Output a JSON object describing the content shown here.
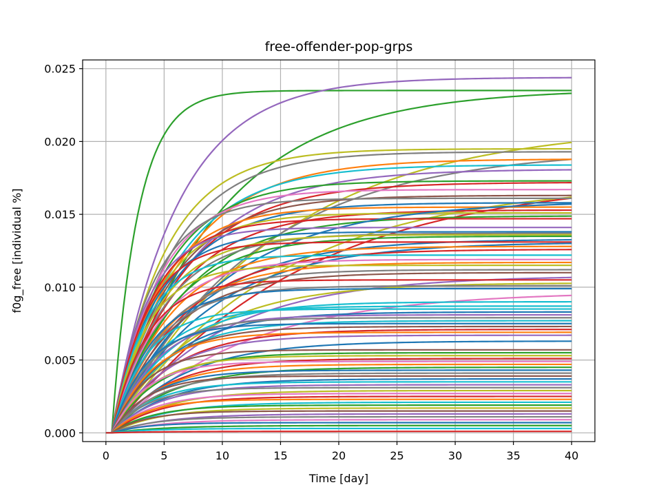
{
  "chart_data": {
    "type": "line",
    "title": "free-offender-pop-grps",
    "xlabel": "Time [day]",
    "ylabel": "f0g_free [individual %]",
    "xlim": [
      -2,
      42
    ],
    "ylim": [
      -0.0006,
      0.0256
    ],
    "xticks": [
      0,
      5,
      10,
      15,
      20,
      25,
      30,
      35,
      40
    ],
    "yticks": [
      0.0,
      0.005,
      0.01,
      0.015,
      0.02,
      0.025
    ],
    "ytick_labels": [
      "0.000",
      "0.005",
      "0.010",
      "0.015",
      "0.020",
      "0.025"
    ],
    "grid": true,
    "model": "saturating growth curves starting at day 0.5: y = final * (1 - exp(-(t - 0.5)/tau))",
    "palette": [
      "#1f77b4",
      "#ff7f0e",
      "#2ca02c",
      "#d62728",
      "#9467bd",
      "#8c564b",
      "#e377c2",
      "#7f7f7f",
      "#bcbd22",
      "#17becf"
    ],
    "series": [
      {
        "final": 0.0235,
        "tau": 2.2,
        "color": "#2ca02c"
      },
      {
        "final": 0.0244,
        "tau": 5.5,
        "color": "#9467bd"
      },
      {
        "final": 0.0236,
        "tau": 9.0,
        "color": "#2ca02c"
      },
      {
        "final": 0.0212,
        "tau": 14.0,
        "color": "#bcbd22"
      },
      {
        "final": 0.0195,
        "tau": 4.5,
        "color": "#bcbd22"
      },
      {
        "final": 0.0193,
        "tau": 5.0,
        "color": "#7f7f7f"
      },
      {
        "final": 0.0195,
        "tau": 12.0,
        "color": "#7f7f7f"
      },
      {
        "final": 0.0188,
        "tau": 6.0,
        "color": "#ff7f0e"
      },
      {
        "final": 0.0184,
        "tau": 5.5,
        "color": "#17becf"
      },
      {
        "final": 0.0181,
        "tau": 6.5,
        "color": "#9467bd"
      },
      {
        "final": 0.0173,
        "tau": 4.5,
        "color": "#2ca02c"
      },
      {
        "final": 0.0172,
        "tau": 6.0,
        "color": "#d62728"
      },
      {
        "final": 0.0172,
        "tau": 14.0,
        "color": "#bcbd22"
      },
      {
        "final": 0.0176,
        "tau": 16.0,
        "color": "#d62728"
      },
      {
        "final": 0.0167,
        "tau": 4.0,
        "color": "#e377c2"
      },
      {
        "final": 0.0163,
        "tau": 5.0,
        "color": "#8c564b"
      },
      {
        "final": 0.0161,
        "tau": 3.5,
        "color": "#7f7f7f"
      },
      {
        "final": 0.0158,
        "tau": 5.0,
        "color": "#1f77b4"
      },
      {
        "final": 0.0155,
        "tau": 4.0,
        "color": "#ff7f0e"
      },
      {
        "final": 0.0153,
        "tau": 5.5,
        "color": "#d62728"
      },
      {
        "final": 0.0151,
        "tau": 4.0,
        "color": "#bcbd22"
      },
      {
        "final": 0.0149,
        "tau": 6.0,
        "color": "#2ca02c"
      },
      {
        "final": 0.0147,
        "tau": 3.5,
        "color": "#d62728"
      },
      {
        "final": 0.0159,
        "tau": 9.0,
        "color": "#1f77b4"
      },
      {
        "final": 0.0141,
        "tau": 3.0,
        "color": "#9467bd"
      },
      {
        "final": 0.0138,
        "tau": 3.5,
        "color": "#1f77b4"
      },
      {
        "final": 0.0137,
        "tau": 4.5,
        "color": "#7f7f7f"
      },
      {
        "final": 0.0136,
        "tau": 4.0,
        "color": "#bcbd22"
      },
      {
        "final": 0.0135,
        "tau": 5.0,
        "color": "#2ca02c"
      },
      {
        "final": 0.0133,
        "tau": 7.0,
        "color": "#1f77b4"
      },
      {
        "final": 0.0131,
        "tau": 3.0,
        "color": "#d62728"
      },
      {
        "final": 0.0131,
        "tau": 8.0,
        "color": "#1f77b4"
      },
      {
        "final": 0.0128,
        "tau": 5.0,
        "color": "#ff7f0e"
      },
      {
        "final": 0.0126,
        "tau": 6.0,
        "color": "#d62728"
      },
      {
        "final": 0.0122,
        "tau": 3.0,
        "color": "#17becf"
      },
      {
        "final": 0.0119,
        "tau": 4.0,
        "color": "#e377c2"
      },
      {
        "final": 0.0117,
        "tau": 5.0,
        "color": "#ff7f0e"
      },
      {
        "final": 0.0115,
        "tau": 3.0,
        "color": "#bcbd22"
      },
      {
        "final": 0.0112,
        "tau": 4.5,
        "color": "#7f7f7f"
      },
      {
        "final": 0.011,
        "tau": 5.0,
        "color": "#8c564b"
      },
      {
        "final": 0.0108,
        "tau": 9.0,
        "color": "#9467bd"
      },
      {
        "final": 0.0105,
        "tau": 3.0,
        "color": "#d62728"
      },
      {
        "final": 0.0103,
        "tau": 7.0,
        "color": "#bcbd22"
      },
      {
        "final": 0.0101,
        "tau": 4.0,
        "color": "#7f7f7f"
      },
      {
        "final": 0.0099,
        "tau": 3.5,
        "color": "#1f77b4"
      },
      {
        "final": 0.0097,
        "tau": 11.0,
        "color": "#e377c2"
      },
      {
        "final": 0.009,
        "tau": 5.0,
        "color": "#17becf"
      },
      {
        "final": 0.0087,
        "tau": 4.0,
        "color": "#17becf"
      },
      {
        "final": 0.0085,
        "tau": 3.0,
        "color": "#17becf"
      },
      {
        "final": 0.0083,
        "tau": 5.0,
        "color": "#1f77b4"
      },
      {
        "final": 0.0081,
        "tau": 4.0,
        "color": "#9467bd"
      },
      {
        "final": 0.0079,
        "tau": 3.5,
        "color": "#7f7f7f"
      },
      {
        "final": 0.0077,
        "tau": 4.5,
        "color": "#17becf"
      },
      {
        "final": 0.0075,
        "tau": 3.0,
        "color": "#1f77b4"
      },
      {
        "final": 0.0073,
        "tau": 4.0,
        "color": "#8c564b"
      },
      {
        "final": 0.0071,
        "tau": 5.0,
        "color": "#d62728"
      },
      {
        "final": 0.0069,
        "tau": 3.5,
        "color": "#ff7f0e"
      },
      {
        "final": 0.0067,
        "tau": 4.5,
        "color": "#9467bd"
      },
      {
        "final": 0.0063,
        "tau": 6.0,
        "color": "#1f77b4"
      },
      {
        "final": 0.0057,
        "tau": 3.0,
        "color": "#8c564b"
      },
      {
        "final": 0.0055,
        "tau": 4.0,
        "color": "#2ca02c"
      },
      {
        "final": 0.0053,
        "tau": 3.5,
        "color": "#bcbd22"
      },
      {
        "final": 0.0051,
        "tau": 4.5,
        "color": "#d62728"
      },
      {
        "final": 0.0049,
        "tau": 3.0,
        "color": "#e377c2"
      },
      {
        "final": 0.0047,
        "tau": 4.0,
        "color": "#ff7f0e"
      },
      {
        "final": 0.0045,
        "tau": 5.0,
        "color": "#2ca02c"
      },
      {
        "final": 0.0043,
        "tau": 3.5,
        "color": "#1f77b4"
      },
      {
        "final": 0.0041,
        "tau": 4.0,
        "color": "#7f7f7f"
      },
      {
        "final": 0.0039,
        "tau": 3.0,
        "color": "#8c564b"
      },
      {
        "final": 0.0037,
        "tau": 4.5,
        "color": "#1f77b4"
      },
      {
        "final": 0.0035,
        "tau": 3.5,
        "color": "#17becf"
      },
      {
        "final": 0.0033,
        "tau": 4.0,
        "color": "#9467bd"
      },
      {
        "final": 0.0031,
        "tau": 3.0,
        "color": "#7f7f7f"
      },
      {
        "final": 0.0029,
        "tau": 4.5,
        "color": "#bcbd22"
      },
      {
        "final": 0.0027,
        "tau": 3.5,
        "color": "#e377c2"
      },
      {
        "final": 0.0025,
        "tau": 4.0,
        "color": "#d62728"
      },
      {
        "final": 0.0023,
        "tau": 3.0,
        "color": "#ff7f0e"
      },
      {
        "final": 0.0021,
        "tau": 4.5,
        "color": "#17becf"
      },
      {
        "final": 0.0019,
        "tau": 3.5,
        "color": "#2ca02c"
      },
      {
        "final": 0.0017,
        "tau": 4.0,
        "color": "#bcbd22"
      },
      {
        "final": 0.0015,
        "tau": 3.0,
        "color": "#8c564b"
      },
      {
        "final": 0.0013,
        "tau": 4.5,
        "color": "#9467bd"
      },
      {
        "final": 0.0011,
        "tau": 3.5,
        "color": "#7f7f7f"
      },
      {
        "final": 0.0009,
        "tau": 4.0,
        "color": "#e377c2"
      },
      {
        "final": 0.0007,
        "tau": 3.0,
        "color": "#1f77b4"
      },
      {
        "final": 0.0005,
        "tau": 4.5,
        "color": "#2ca02c"
      },
      {
        "final": 0.0003,
        "tau": 3.5,
        "color": "#17becf"
      },
      {
        "final": 0.0001,
        "tau": 4.0,
        "color": "#d62728"
      }
    ]
  }
}
